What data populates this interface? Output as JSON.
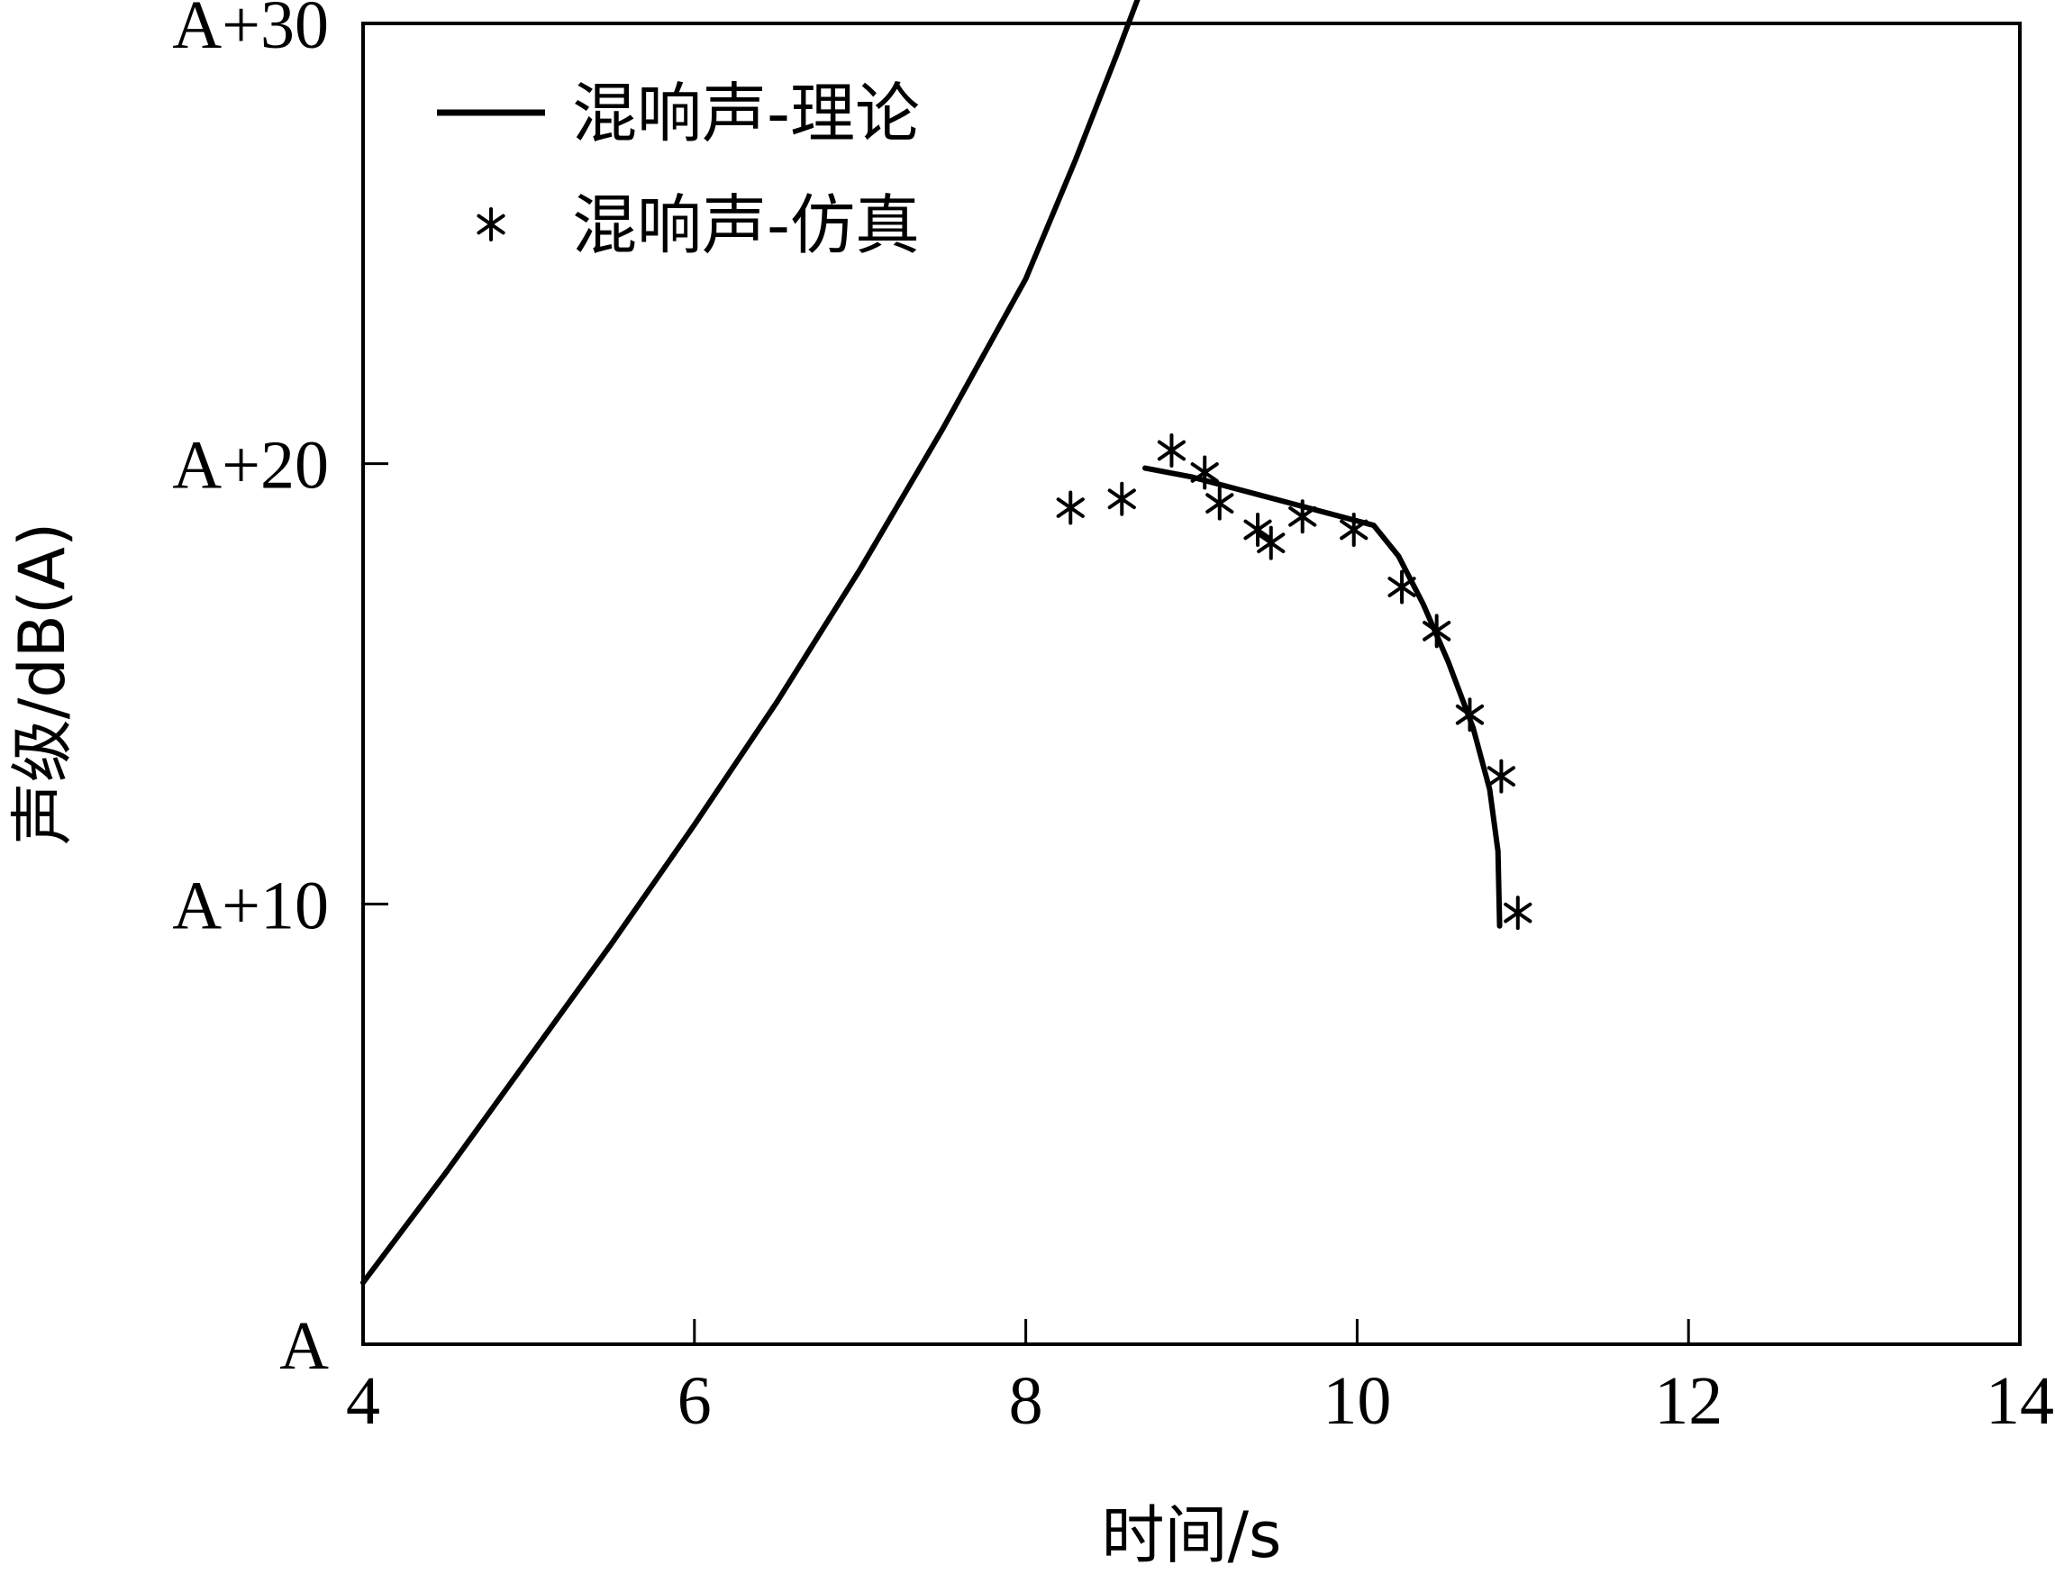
{
  "chart_data": {
    "type": "line",
    "title": "",
    "xlabel": "时间/s",
    "ylabel": "声级/dB(A)",
    "xlim": [
      4,
      14
    ],
    "ylim": [
      0,
      30
    ],
    "x_ticks": [
      4,
      6,
      8,
      10,
      12,
      14
    ],
    "x_tick_labels": [
      "4",
      "6",
      "8",
      "10",
      "12",
      "14"
    ],
    "y_ticks": [
      0,
      10,
      20,
      30
    ],
    "y_tick_labels": [
      "A",
      "A+10",
      "A+20",
      "A+30"
    ],
    "grid": false,
    "legend": {
      "placement": "top-left"
    },
    "series": [
      {
        "name": "混响声-理论",
        "style": "line",
        "color": "#000000",
        "x": [
          4.0,
          4.5,
          5.0,
          5.5,
          6.0,
          6.5,
          7.0,
          7.5,
          8.0,
          8.3,
          8.55,
          8.72
        ],
        "y": [
          1.4,
          3.9,
          6.5,
          9.1,
          11.8,
          14.6,
          17.6,
          20.8,
          24.2,
          26.9,
          29.3,
          31.0
        ]
      },
      {
        "name": "",
        "style": "line",
        "color": "#000000",
        "x": [
          8.72,
          9.0,
          9.3,
          9.6,
          9.9,
          10.1,
          10.25,
          10.4,
          10.55,
          10.7,
          10.8,
          10.85,
          10.86
        ],
        "y": [
          19.9,
          19.7,
          19.4,
          19.1,
          18.8,
          18.6,
          17.9,
          16.8,
          15.5,
          14.0,
          12.6,
          11.2,
          9.5
        ]
      },
      {
        "name": "混响声-仿真",
        "style": "marker",
        "marker": "asterisk",
        "color": "#000000",
        "x": [
          8.27,
          8.58,
          8.88,
          9.08,
          9.17,
          9.4,
          9.48,
          9.67,
          9.98,
          10.27,
          10.48,
          10.68,
          10.87,
          10.97
        ],
        "y": [
          19.0,
          19.2,
          20.3,
          19.8,
          19.1,
          18.5,
          18.2,
          18.8,
          18.5,
          17.2,
          16.2,
          14.3,
          12.9,
          9.8
        ]
      }
    ]
  }
}
